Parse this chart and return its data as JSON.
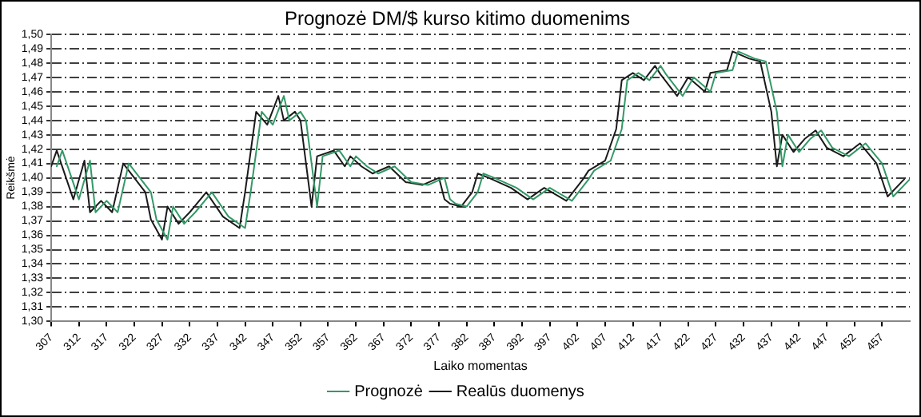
{
  "chart_data": {
    "type": "line",
    "title": "Prognozė DM/$ kurso kitimo duomenims",
    "xlabel": "Laiko momentas",
    "ylabel": "Reikšmė",
    "xlim": [
      307,
      462
    ],
    "xticks": [
      307,
      312,
      317,
      322,
      327,
      332,
      337,
      342,
      347,
      352,
      357,
      362,
      367,
      372,
      377,
      382,
      387,
      392,
      397,
      402,
      407,
      412,
      417,
      422,
      427,
      432,
      437,
      442,
      447,
      452,
      457
    ],
    "ylim": [
      1.3,
      1.5
    ],
    "yticks": [
      {
        "value": 1.3,
        "label": "1,30"
      },
      {
        "value": 1.31,
        "label": "1,31"
      },
      {
        "value": 1.32,
        "label": "1,32"
      },
      {
        "value": 1.33,
        "label": "1,33"
      },
      {
        "value": 1.34,
        "label": "1,34"
      },
      {
        "value": 1.35,
        "label": "1,35"
      },
      {
        "value": 1.36,
        "label": "1,36"
      },
      {
        "value": 1.37,
        "label": "1,37"
      },
      {
        "value": 1.38,
        "label": "1,38"
      },
      {
        "value": 1.39,
        "label": "1,39"
      },
      {
        "value": 1.4,
        "label": "1,40"
      },
      {
        "value": 1.41,
        "label": "1,41"
      },
      {
        "value": 1.42,
        "label": "1,42"
      },
      {
        "value": 1.43,
        "label": "1,43"
      },
      {
        "value": 1.44,
        "label": "1,44"
      },
      {
        "value": 1.45,
        "label": "1,45"
      },
      {
        "value": 1.46,
        "label": "1,46"
      },
      {
        "value": 1.47,
        "label": "1,47"
      },
      {
        "value": 1.48,
        "label": "1,48"
      },
      {
        "value": 1.49,
        "label": "1,49"
      },
      {
        "value": 1.5,
        "label": "1,50"
      }
    ],
    "grid": "y",
    "legend": "bottom",
    "marker": "none",
    "line_style": "solid",
    "series": [
      {
        "name": "Prognozė",
        "color": "#339966",
        "x": [
          308,
          309,
          312,
          314,
          315,
          317,
          319,
          321,
          323,
          325,
          326,
          328,
          329,
          331,
          333,
          336,
          339,
          342,
          343,
          345,
          347,
          349,
          350,
          352,
          353,
          355,
          356,
          359,
          361,
          362,
          364,
          366,
          369,
          372,
          375,
          378,
          379,
          380,
          382,
          384,
          385,
          387,
          391,
          394,
          397,
          401,
          404,
          405,
          408,
          410,
          411,
          413,
          415,
          417,
          418,
          421,
          423,
          426,
          427,
          430,
          431,
          434,
          436,
          438,
          439,
          440,
          442,
          444,
          446,
          448,
          451,
          454,
          457,
          459,
          462
        ],
        "values": [
          1.408,
          1.419,
          1.385,
          1.412,
          1.376,
          1.384,
          1.376,
          1.41,
          1.4,
          1.39,
          1.371,
          1.357,
          1.38,
          1.368,
          1.376,
          1.39,
          1.373,
          1.365,
          1.39,
          1.446,
          1.437,
          1.457,
          1.44,
          1.446,
          1.44,
          1.38,
          1.415,
          1.419,
          1.408,
          1.415,
          1.408,
          1.403,
          1.408,
          1.397,
          1.395,
          1.4,
          1.385,
          1.382,
          1.38,
          1.39,
          1.403,
          1.4,
          1.393,
          1.385,
          1.393,
          1.384,
          1.399,
          1.405,
          1.412,
          1.434,
          1.468,
          1.473,
          1.468,
          1.478,
          1.472,
          1.457,
          1.47,
          1.46,
          1.473,
          1.475,
          1.488,
          1.483,
          1.481,
          1.446,
          1.408,
          1.43,
          1.418,
          1.427,
          1.433,
          1.421,
          1.415,
          1.424,
          1.41,
          1.387,
          1.399
        ]
      },
      {
        "name": "Realūs duomenys",
        "color": "#1a1a1a",
        "x": [
          307,
          308,
          311,
          313,
          314,
          316,
          318,
          320,
          322,
          324,
          325,
          327,
          328,
          330,
          332,
          335,
          338,
          341,
          342,
          344,
          346,
          348,
          349,
          351,
          352,
          354,
          355,
          358,
          360,
          361,
          363,
          365,
          368,
          371,
          374,
          377,
          378,
          379,
          381,
          383,
          384,
          386,
          390,
          393,
          396,
          400,
          403,
          404,
          407,
          409,
          410,
          412,
          414,
          416,
          417,
          420,
          422,
          425,
          426,
          429,
          430,
          433,
          435,
          437,
          438,
          439,
          441,
          443,
          445,
          447,
          450,
          453,
          456,
          458,
          461
        ],
        "values": [
          1.408,
          1.419,
          1.385,
          1.412,
          1.376,
          1.384,
          1.376,
          1.41,
          1.4,
          1.39,
          1.371,
          1.357,
          1.38,
          1.368,
          1.376,
          1.39,
          1.373,
          1.365,
          1.39,
          1.446,
          1.437,
          1.457,
          1.44,
          1.446,
          1.44,
          1.38,
          1.415,
          1.419,
          1.408,
          1.415,
          1.408,
          1.403,
          1.408,
          1.397,
          1.395,
          1.4,
          1.385,
          1.382,
          1.38,
          1.39,
          1.403,
          1.4,
          1.393,
          1.385,
          1.393,
          1.384,
          1.399,
          1.405,
          1.412,
          1.434,
          1.468,
          1.473,
          1.468,
          1.478,
          1.472,
          1.457,
          1.47,
          1.46,
          1.473,
          1.475,
          1.488,
          1.483,
          1.481,
          1.446,
          1.408,
          1.43,
          1.418,
          1.427,
          1.433,
          1.421,
          1.415,
          1.424,
          1.41,
          1.387,
          1.399
        ]
      }
    ]
  }
}
